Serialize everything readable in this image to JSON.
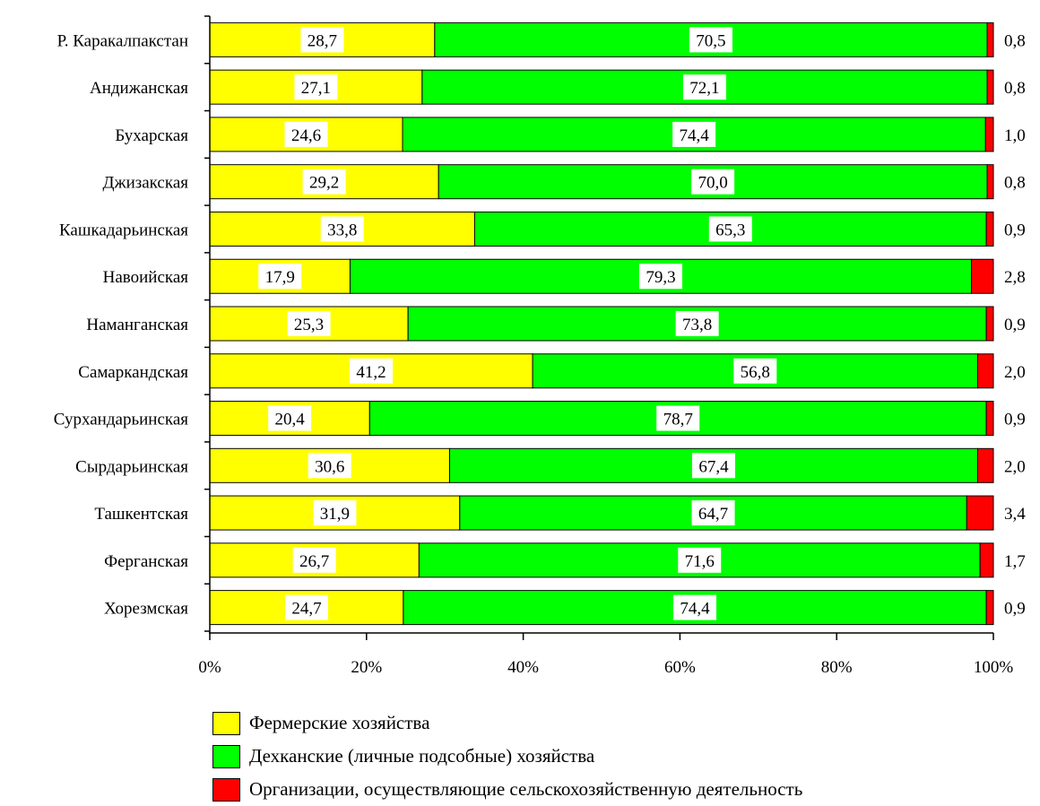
{
  "chart_data": {
    "type": "bar",
    "orientation": "horizontal",
    "stacked": "percent",
    "categories": [
      "Р. Каракалпакстан",
      "Андижанская",
      "Бухарская",
      "Джизакская",
      "Кашкадарьинская",
      "Навоийская",
      "Наманганская",
      "Самаркандская",
      "Сурхандарьинская",
      "Сырдарьинская",
      "Ташкентская",
      "Ферганская",
      "Хорезмская"
    ],
    "series": [
      {
        "name": "Фермерские хозяйства",
        "color": "#ffff00",
        "values": [
          28.7,
          27.1,
          24.6,
          29.2,
          33.8,
          17.9,
          25.3,
          41.2,
          20.4,
          30.6,
          31.9,
          26.7,
          24.7
        ],
        "labels": [
          "28,7",
          "27,1",
          "24,6",
          "29,2",
          "33,8",
          "17,9",
          "25,3",
          "41,2",
          "20,4",
          "30,6",
          "31,9",
          "26,7",
          "24,7"
        ]
      },
      {
        "name": "Дехканские (личные подсобные) хозяйства",
        "color": "#00ff00",
        "values": [
          70.5,
          72.1,
          74.4,
          70.0,
          65.3,
          79.3,
          73.8,
          56.8,
          78.7,
          67.4,
          64.7,
          71.6,
          74.4
        ],
        "labels": [
          "70,5",
          "72,1",
          "74,4",
          "70,0",
          "65,3",
          "79,3",
          "73,8",
          "56,8",
          "78,7",
          "67,4",
          "64,7",
          "71,6",
          "74,4"
        ]
      },
      {
        "name": "Организации, осуществляющие сельскохозяйственную деятельность",
        "color": "#ff0000",
        "values": [
          0.8,
          0.8,
          1.0,
          0.8,
          0.9,
          2.8,
          0.9,
          2.0,
          0.9,
          2.0,
          3.4,
          1.7,
          0.9
        ],
        "labels": [
          "0,8",
          "0,8",
          "1,0",
          "0,8",
          "0,9",
          "2,8",
          "0,9",
          "2,0",
          "0,9",
          "2,0",
          "3,4",
          "1,7",
          "0,9"
        ]
      }
    ],
    "x_ticks": [
      "0%",
      "20%",
      "40%",
      "60%",
      "80%",
      "100%"
    ],
    "xlim": [
      0,
      100
    ],
    "legend_position": "bottom-left",
    "grid": false
  }
}
